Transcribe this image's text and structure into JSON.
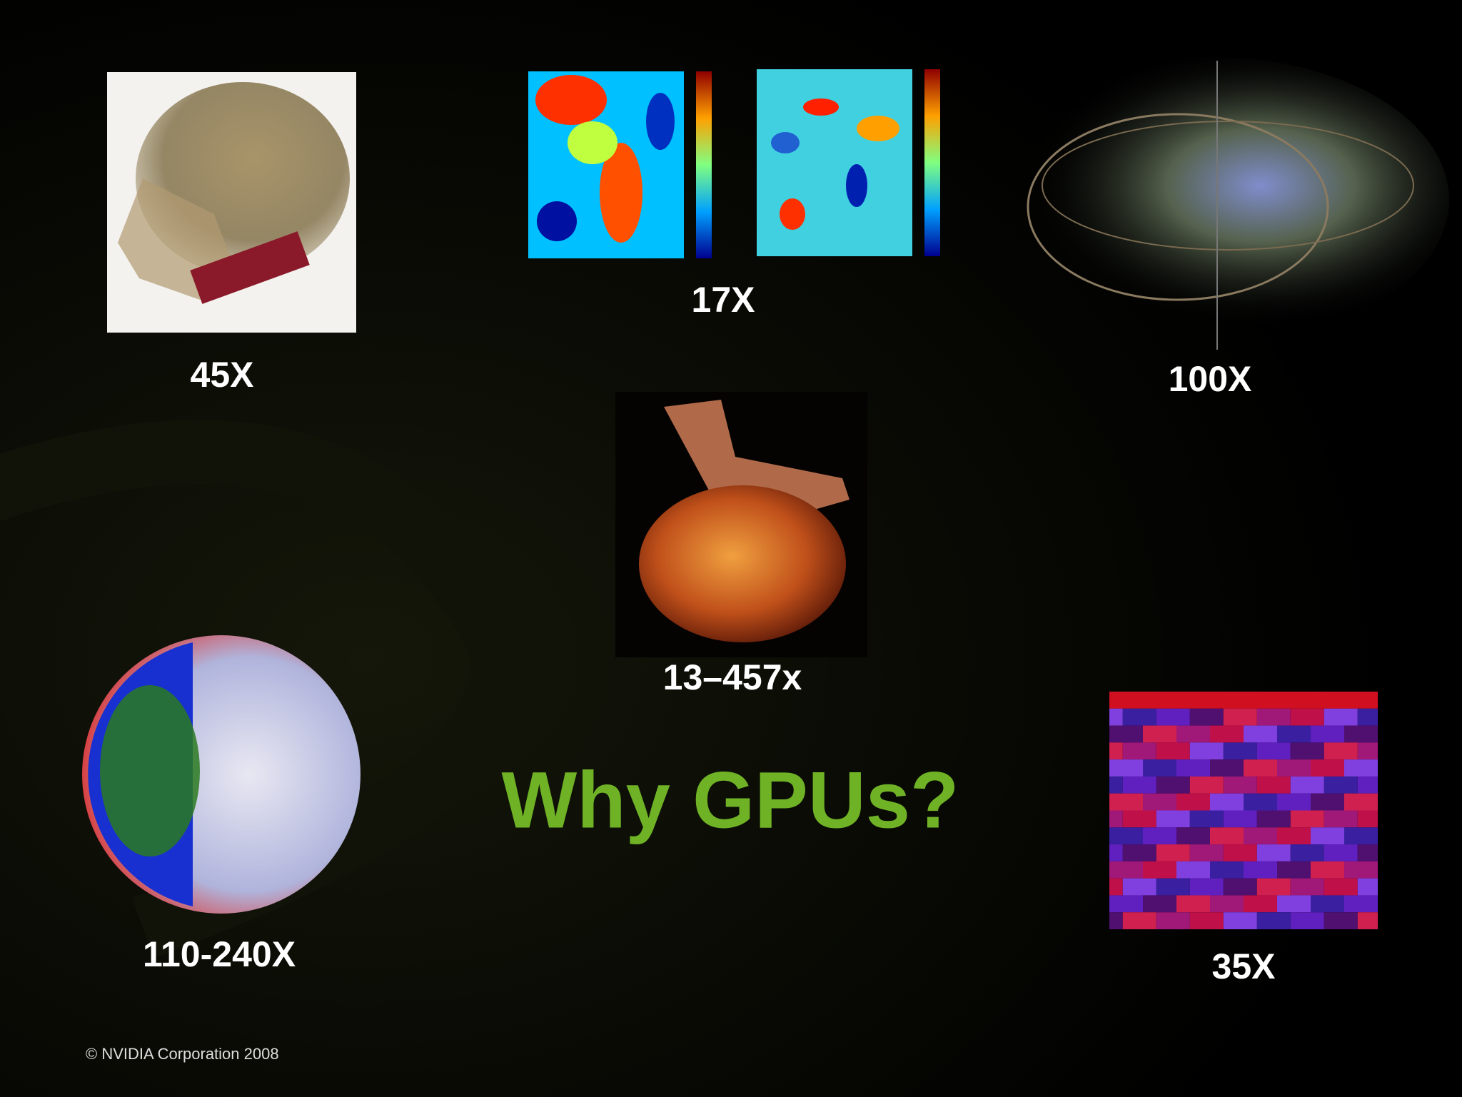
{
  "slide": {
    "title": "Why GPUs?",
    "panels": [
      {
        "label": "45X"
      },
      {
        "label": "17X"
      },
      {
        "label": "100X"
      },
      {
        "label": "13–457x"
      },
      {
        "label": "110-240X"
      },
      {
        "label": "35X"
      }
    ],
    "footer": "© NVIDIA Corporation 2008"
  }
}
